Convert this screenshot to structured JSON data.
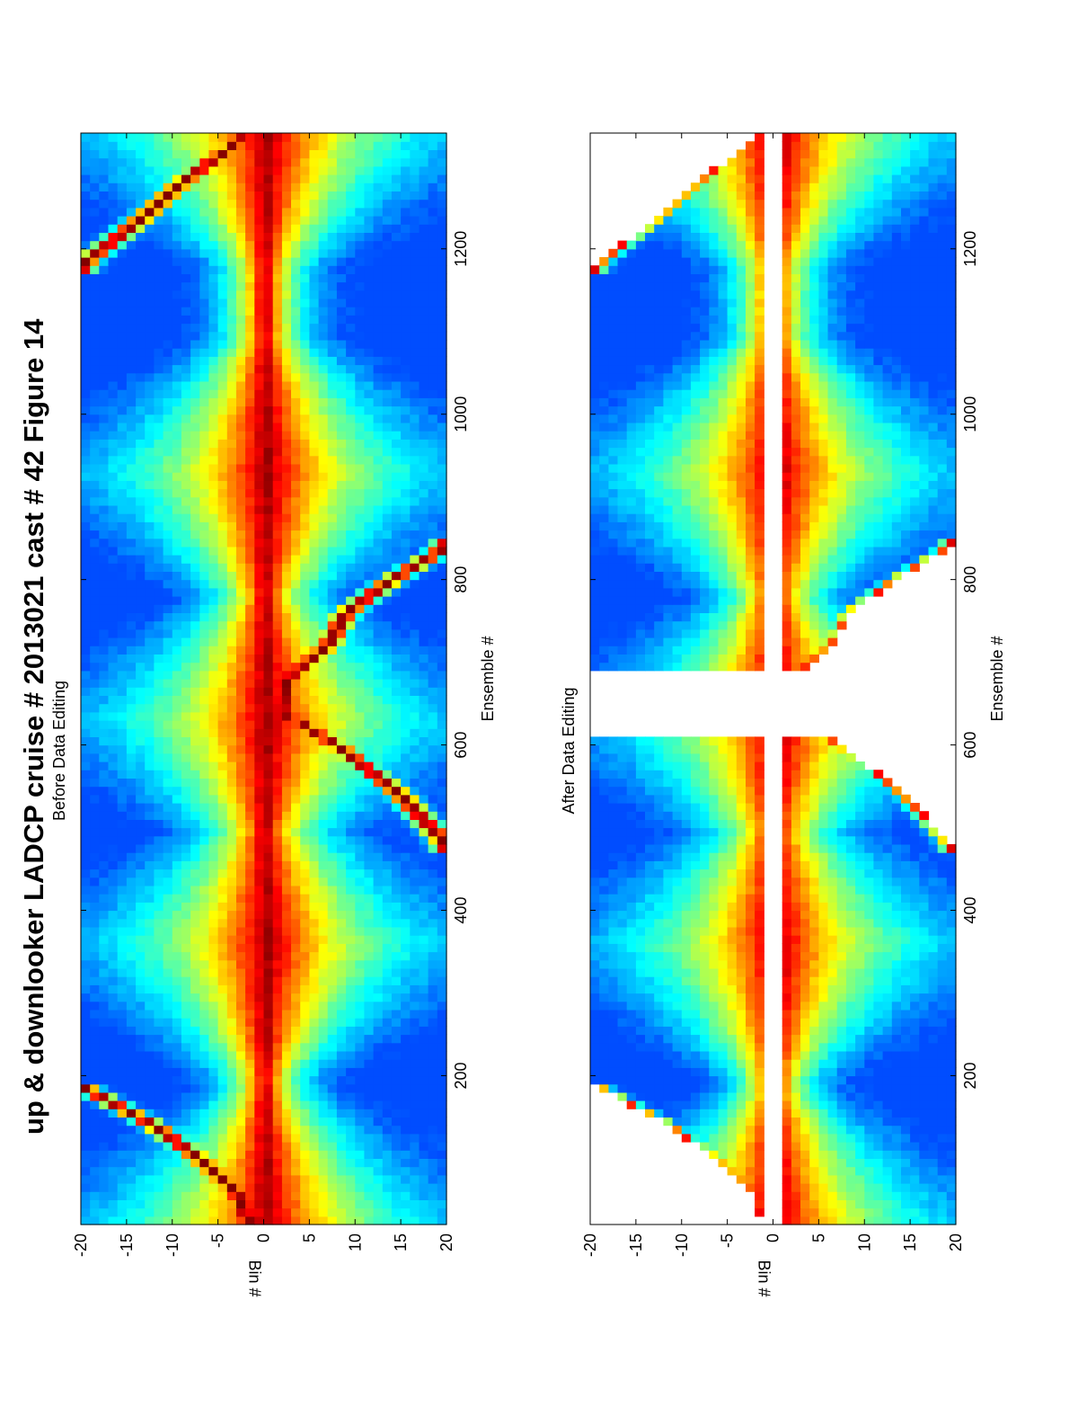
{
  "figure": {
    "title": "up & downlooker LADCP cruise # 2013021 cast # 42  Figure 14",
    "orientation": "rotated 90° counter-clockwise (landscape on portrait page)"
  },
  "chart_data": [
    {
      "type": "heatmap",
      "title": "Before Data Editing",
      "xlabel": "Ensemble #",
      "ylabel": "Bin #",
      "xlim": [
        20,
        1340
      ],
      "ylim": [
        -20,
        20
      ],
      "xticks": [
        200,
        400,
        600,
        800,
        1000,
        1200
      ],
      "yticks": [
        -20,
        -15,
        -10,
        -5,
        0,
        5,
        10,
        15,
        20
      ],
      "colormap": "jet",
      "gap_bin_range": [
        -0.5,
        0.5
      ],
      "bottom_reflection_paths": [
        {
          "name": "upward bottom/surface track (start)",
          "points": [
            [
              20,
              -1.5
            ],
            [
              60,
              -3
            ],
            [
              100,
              -7
            ],
            [
              140,
              -12
            ],
            [
              185,
              -19.5
            ]
          ]
        },
        {
          "name": "downward bottom track (middle)",
          "points": [
            [
              480,
              20
            ],
            [
              540,
              15
            ],
            [
              600,
              8
            ],
            [
              640,
              2
            ],
            [
              680,
              2.5
            ],
            [
              720,
              7
            ],
            [
              760,
              9
            ],
            [
              800,
              14
            ],
            [
              840,
              20
            ]
          ]
        },
        {
          "name": "upward surface track (end)",
          "points": [
            [
              1180,
              -20
            ],
            [
              1240,
              -13
            ],
            [
              1280,
              -9
            ],
            [
              1320,
              -4
            ],
            [
              1340,
              -1.5
            ]
          ]
        }
      ],
      "intensity_maxima_ensembles": [
        20,
        360,
        630,
        930,
        1340
      ],
      "intensity_minima_ensembles": [
        180,
        480,
        780,
        1180
      ]
    },
    {
      "type": "heatmap",
      "title": "After Data Editing",
      "xlabel": "Ensemble #",
      "ylabel": "Bin #",
      "xlim": [
        20,
        1340
      ],
      "ylim": [
        -20,
        20
      ],
      "xticks": [
        200,
        400,
        600,
        800,
        1000,
        1200
      ],
      "yticks": [
        -20,
        -15,
        -10,
        -5,
        0,
        5,
        10,
        15,
        20
      ],
      "colormap": "jet",
      "removed_regions": [
        {
          "description": "bins -20 to 1 near surface (upper-left wedge)",
          "points": [
            [
              20,
              -1.5
            ],
            [
              60,
              -3
            ],
            [
              100,
              -7
            ],
            [
              140,
              -12
            ],
            [
              185,
              -19.5
            ]
          ]
        },
        {
          "description": "bins -1 to 1 (blanked bins)",
          "range": [
            -1,
            1.3
          ]
        },
        {
          "description": "near-bottom wedge around ensembles 480–840",
          "points": [
            [
              480,
              20
            ],
            [
              540,
              15
            ],
            [
              600,
              8
            ],
            [
              640,
              2
            ],
            [
              680,
              2.5
            ],
            [
              720,
              7
            ],
            [
              760,
              9
            ],
            [
              800,
              14
            ],
            [
              840,
              20
            ]
          ]
        },
        {
          "description": "upper-right wedge",
          "points": [
            [
              1180,
              -20
            ],
            [
              1240,
              -13
            ],
            [
              1280,
              -9
            ],
            [
              1320,
              -4
            ],
            [
              1340,
              -1.5
            ]
          ]
        },
        {
          "description": "ensembles 610-690 removed entirely"
        }
      ]
    }
  ]
}
